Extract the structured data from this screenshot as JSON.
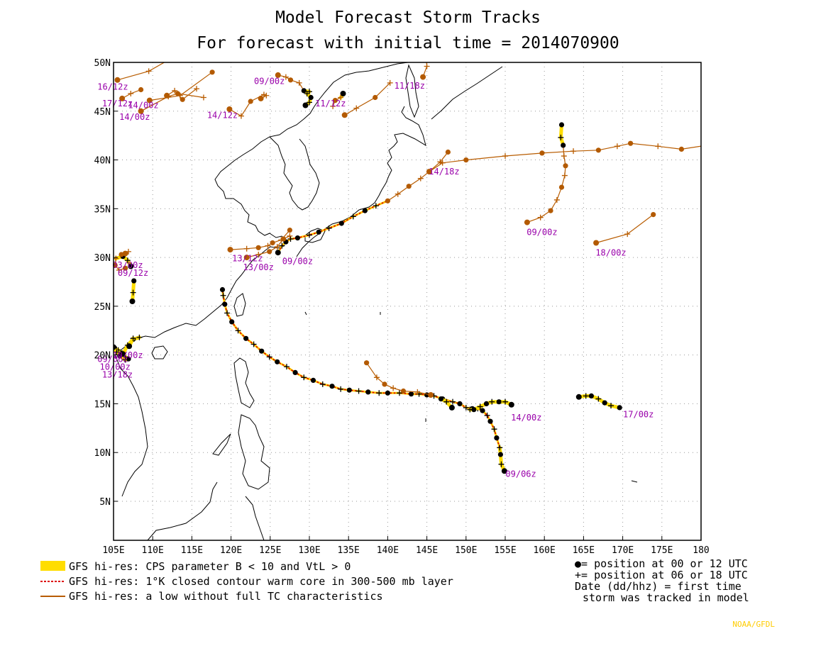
{
  "title_line1": "Model Forecast Storm Tracks",
  "title_line2": "For forecast with initial time = 2014070900",
  "lon_ticks": [
    "105E",
    "110E",
    "115E",
    "120E",
    "125E",
    "130E",
    "135E",
    "140E",
    "145E",
    "150E",
    "155E",
    "160E",
    "165E",
    "170E",
    "175E",
    "180"
  ],
  "lat_ticks": [
    "5N",
    "10N",
    "15N",
    "20N",
    "25N",
    "30N",
    "35N",
    "40N",
    "45N",
    "50N"
  ],
  "legend": {
    "yellow": "GFS hi-res: CPS parameter B < 10 and VtL > 0",
    "red": "GFS hi-res: 1°K closed contour warm core in 300-500 mb layer",
    "brown": "GFS hi-res: a low without full TC characteristics",
    "key1": "●= position at 00 or 12 UTC",
    "key2": "+= position at 06 or 18 UTC",
    "key3": "Date (dd/hhz)  = first time",
    "key4": "storm was tracked in model"
  },
  "credit": "NOAA/GFDL",
  "colors": {
    "yellow": "#ffdd00",
    "red": "#dd0000",
    "brown": "#b85c00",
    "label": "#9900aa",
    "dot_brown": "#b35a00"
  },
  "map_extent": {
    "lon": [
      105,
      180
    ],
    "lat": [
      1,
      50
    ]
  },
  "tracks": [
    {
      "label": "09/06z",
      "label_lon": 157,
      "label_lat": 7.5,
      "points": [
        [
          154.9,
          8.1
        ],
        [
          154.5,
          8.8
        ],
        [
          154.4,
          9.8
        ],
        [
          154.3,
          10.5
        ],
        [
          153.9,
          11.5
        ],
        [
          153.6,
          12.4
        ],
        [
          153.1,
          13.2
        ],
        [
          152.7,
          13.8
        ],
        [
          152.1,
          14.3
        ],
        [
          151.5,
          14.5
        ],
        [
          150.8,
          14.5
        ],
        [
          150,
          14.6
        ],
        [
          149.2,
          15
        ],
        [
          148.3,
          15.2
        ],
        [
          147,
          15.5
        ],
        [
          145.9,
          15.8
        ],
        [
          145,
          15.9
        ],
        [
          144,
          16
        ],
        [
          143,
          16
        ],
        [
          141.5,
          16.1
        ],
        [
          140,
          16.1
        ],
        [
          138.9,
          16.1
        ],
        [
          137.5,
          16.2
        ],
        [
          136.3,
          16.3
        ],
        [
          135.1,
          16.4
        ],
        [
          134,
          16.5
        ],
        [
          132.9,
          16.8
        ],
        [
          131.7,
          17
        ],
        [
          130.5,
          17.4
        ],
        [
          129.3,
          17.7
        ],
        [
          128.2,
          18.2
        ],
        [
          127.1,
          18.8
        ],
        [
          125.9,
          19.3
        ],
        [
          124.9,
          19.8
        ],
        [
          123.9,
          20.4
        ],
        [
          122.9,
          21.1
        ],
        [
          121.9,
          21.7
        ],
        [
          120.9,
          22.5
        ],
        [
          120.1,
          23.4
        ],
        [
          119.5,
          24.3
        ],
        [
          119.2,
          25.2
        ],
        [
          119,
          26.1
        ],
        [
          118.9,
          26.7
        ]
      ],
      "segments": [
        {
          "type": "yellow",
          "from": 0,
          "to": 3
        },
        {
          "type": "red",
          "from": 3,
          "to": 42
        }
      ]
    },
    {
      "label": "14/00z",
      "label_lon": 157.7,
      "label_lat": 13.3,
      "points": [
        [
          148.2,
          14.6
        ],
        [
          147.5,
          15.2
        ],
        [
          146.8,
          15.5
        ]
      ],
      "segments": [
        {
          "type": "yellow",
          "from": 0,
          "to": 2
        }
      ]
    },
    {
      "label": "",
      "label_lon": 0,
      "label_lat": 0,
      "points": [
        [
          155.8,
          14.9
        ],
        [
          155,
          15.2
        ],
        [
          154.2,
          15.2
        ],
        [
          153.3,
          15.2
        ],
        [
          152.6,
          15
        ],
        [
          151.8,
          14.7
        ],
        [
          151,
          14.4
        ],
        [
          150.5,
          14.4
        ]
      ],
      "segments": [
        {
          "type": "yellow",
          "from": 0,
          "to": 7
        }
      ]
    },
    {
      "label": "",
      "label_lon": 0,
      "label_lat": 0,
      "points": [
        [
          145.5,
          15.9
        ],
        [
          143.8,
          16.2
        ],
        [
          142,
          16.3
        ],
        [
          140.7,
          16.6
        ],
        [
          139.6,
          17
        ],
        [
          138.6,
          17.7
        ],
        [
          137.3,
          19.2
        ]
      ],
      "segments": [
        {
          "type": "brown",
          "from": 0,
          "to": 6
        }
      ]
    },
    {
      "label": "17/00z",
      "label_lon": 172,
      "label_lat": 13.6,
      "points": [
        [
          164.4,
          15.7
        ],
        [
          165.3,
          15.8
        ],
        [
          166,
          15.8
        ],
        [
          166.9,
          15.5
        ],
        [
          167.7,
          15.1
        ],
        [
          168.5,
          14.8
        ],
        [
          169.6,
          14.6
        ]
      ],
      "segments": [
        {
          "type": "yellow",
          "from": 0,
          "to": 6
        }
      ]
    },
    {
      "label": "09/00z",
      "label_lon": 128.5,
      "label_lat": 29.3,
      "points": [
        [
          126,
          30.5
        ],
        [
          126.5,
          31.2
        ],
        [
          127,
          31.6
        ],
        [
          127.6,
          31.9
        ],
        [
          128.5,
          32
        ],
        [
          130,
          32.3
        ],
        [
          131.2,
          32.6
        ],
        [
          132.5,
          33
        ],
        [
          134.1,
          33.5
        ],
        [
          135.6,
          34.2
        ],
        [
          137.1,
          34.8
        ],
        [
          138.5,
          35.3
        ],
        [
          140,
          35.8
        ],
        [
          141.3,
          36.5
        ],
        [
          142.7,
          37.3
        ],
        [
          144.2,
          38.1
        ],
        [
          145.3,
          38.8
        ],
        [
          146.7,
          39.8
        ],
        [
          147.7,
          40.8
        ]
      ],
      "segments": [
        {
          "type": "red",
          "from": 0,
          "to": 12
        },
        {
          "type": "brown",
          "from": 12,
          "to": 18
        }
      ]
    },
    {
      "label": "14/18z",
      "label_lon": 147.2,
      "label_lat": 38.5,
      "points": [
        [
          145.3,
          38.8
        ],
        [
          147,
          39.7
        ],
        [
          150,
          40
        ],
        [
          155,
          40.4
        ],
        [
          159.7,
          40.7
        ],
        [
          163.7,
          40.9
        ],
        [
          166.9,
          41
        ],
        [
          169.3,
          41.4
        ],
        [
          171,
          41.7
        ],
        [
          174.5,
          41.4
        ],
        [
          177.5,
          41.1
        ],
        [
          181.5,
          41.6
        ]
      ],
      "segments": [
        {
          "type": "brown",
          "from": 0,
          "to": 11
        }
      ]
    },
    {
      "label": "09/00z",
      "label_lon": 159.7,
      "label_lat": 32.3,
      "points": [
        [
          157.8,
          33.6
        ],
        [
          159.5,
          34.1
        ],
        [
          160.8,
          34.8
        ],
        [
          161.6,
          35.9
        ],
        [
          162.2,
          37.2
        ],
        [
          162.6,
          38.4
        ],
        [
          162.7,
          39.4
        ],
        [
          162.5,
          40.4
        ],
        [
          162.4,
          41.5
        ],
        [
          162.1,
          42.3
        ],
        [
          162.2,
          43.6
        ]
      ],
      "segments": [
        {
          "type": "brown",
          "from": 0,
          "to": 8
        },
        {
          "type": "yellow",
          "from": 8,
          "to": 10
        }
      ]
    },
    {
      "label": "18/00z",
      "label_lon": 168.5,
      "label_lat": 30.2,
      "points": [
        [
          166.6,
          31.5
        ],
        [
          170.6,
          32.4
        ],
        [
          173.9,
          34.4
        ]
      ],
      "segments": [
        {
          "type": "brown",
          "from": 0,
          "to": 2
        }
      ]
    },
    {
      "label": "13/12z",
      "label_lon": 122.1,
      "label_lat": 29.6,
      "points": [
        [
          119.9,
          30.8
        ],
        [
          122,
          30.9
        ],
        [
          123.5,
          31
        ],
        [
          124.7,
          31.2
        ],
        [
          125.3,
          31.5
        ],
        [
          126.4,
          31.8
        ],
        [
          127.5,
          32.8
        ]
      ],
      "segments": [
        {
          "type": "brown",
          "from": 0,
          "to": 6
        }
      ]
    },
    {
      "label": "13/00z",
      "label_lon": 123.5,
      "label_lat": 28.7,
      "points": [
        [
          122,
          30
        ],
        [
          123.5,
          30.3
        ],
        [
          124.9,
          30.6
        ],
        [
          125.9,
          31.1
        ],
        [
          126.7,
          31.9
        ],
        [
          127.5,
          32.2
        ]
      ],
      "segments": [
        {
          "type": "brown",
          "from": 0,
          "to": 5
        }
      ]
    },
    {
      "label": "09/12z",
      "label_lon": 107.5,
      "label_lat": 28.1,
      "points": [
        [
          107.4,
          25.5
        ],
        [
          107.5,
          26.4
        ],
        [
          107.6,
          27.6
        ]
      ],
      "segments": [
        {
          "type": "yellow",
          "from": 0,
          "to": 2
        }
      ]
    },
    {
      "label": "",
      "label_lon": 0,
      "label_lat": 0,
      "points": [
        [
          107.2,
          29.1
        ],
        [
          106.8,
          29.7
        ],
        [
          106.2,
          30.1
        ],
        [
          105.3,
          29.9
        ],
        [
          105.2,
          29.2
        ],
        [
          105.7,
          28.7
        ],
        [
          106.5,
          28.9
        ]
      ],
      "segments": [
        {
          "type": "yellow",
          "from": 0,
          "to": 3
        },
        {
          "type": "brown",
          "from": 3,
          "to": 6
        }
      ]
    },
    {
      "label": "03/00z",
      "label_lon": 106.8,
      "label_lat": 28.9,
      "points": [
        [
          106.5,
          30.4
        ],
        [
          106.9,
          30.6
        ],
        [
          106,
          30.3
        ]
      ],
      "segments": [
        {
          "type": "brown",
          "from": 0,
          "to": 2
        }
      ]
    },
    {
      "label": "09/06z",
      "label_lon": 104.9,
      "label_lat": 19.3,
      "points": [
        [
          105.1,
          20.7
        ],
        [
          105.6,
          20.5
        ],
        [
          106.1,
          20.2
        ],
        [
          106.5,
          19.8
        ],
        [
          106.9,
          19.6
        ]
      ],
      "segments": [
        {
          "type": "yellow",
          "from": 0,
          "to": 4
        }
      ]
    },
    {
      "label": "13/18z",
      "label_lon": 105.5,
      "label_lat": 17.7,
      "points": [
        [
          105,
          20.8
        ],
        [
          105.4,
          20.3
        ],
        [
          105.8,
          19.9
        ],
        [
          106.5,
          19.5
        ]
      ],
      "segments": [
        {
          "type": "yellow",
          "from": 0,
          "to": 3
        }
      ]
    },
    {
      "label": "10/00z",
      "label_lon": 105.2,
      "label_lat": 18.5,
      "points": [
        [
          106.2,
          20.1
        ],
        [
          106.8,
          21
        ],
        [
          107.5,
          21.6
        ],
        [
          108.3,
          21.8
        ]
      ],
      "segments": [
        {
          "type": "yellow",
          "from": 0,
          "to": 3
        }
      ]
    },
    {
      "label": "10/00z",
      "label_lon": 106.8,
      "label_lat": 19.7,
      "points": [
        [
          107,
          20.9
        ],
        [
          107.5,
          21.7
        ]
      ],
      "segments": [
        {
          "type": "yellow",
          "from": 0,
          "to": 1
        }
      ]
    },
    {
      "label": "16/12z",
      "label_lon": 104.9,
      "label_lat": 47.2,
      "points": [
        [
          105.5,
          48.2
        ],
        [
          109.5,
          49.1
        ],
        [
          113,
          50.7
        ]
      ],
      "segments": [
        {
          "type": "brown",
          "from": 0,
          "to": 2
        }
      ]
    },
    {
      "label": "17/12z",
      "label_lon": 105.5,
      "label_lat": 45.5,
      "points": [
        [
          106.1,
          46.3
        ],
        [
          107.2,
          46.8
        ],
        [
          108.5,
          47.2
        ]
      ],
      "segments": [
        {
          "type": "brown",
          "from": 0,
          "to": 2
        }
      ]
    },
    {
      "label": "14/00z",
      "label_lon": 108.8,
      "label_lat": 45.3,
      "points": [
        [
          109.6,
          46.1
        ],
        [
          113.5,
          46.6
        ],
        [
          117.6,
          49
        ]
      ],
      "segments": [
        {
          "type": "brown",
          "from": 0,
          "to": 2
        }
      ]
    },
    {
      "label": "14/00z",
      "label_lon": 107.7,
      "label_lat": 44.1,
      "points": [
        [
          108.5,
          45
        ],
        [
          112,
          46.5
        ],
        [
          113.2,
          46.8
        ],
        [
          116.5,
          46.4
        ]
      ],
      "segments": [
        {
          "type": "brown",
          "from": 0,
          "to": 3
        }
      ]
    },
    {
      "label": "",
      "label_lon": 0,
      "label_lat": 0,
      "points": [
        [
          111.8,
          46.6
        ],
        [
          112.8,
          47.1
        ],
        [
          113.8,
          46.2
        ],
        [
          115.6,
          47.3
        ]
      ],
      "segments": [
        {
          "type": "brown",
          "from": 0,
          "to": 3
        }
      ]
    },
    {
      "label": "14/12z",
      "label_lon": 118.9,
      "label_lat": 44.3,
      "points": [
        [
          119.8,
          45.2
        ],
        [
          121.3,
          44.5
        ],
        [
          122.5,
          46
        ],
        [
          124.2,
          46.7
        ]
      ],
      "segments": [
        {
          "type": "brown",
          "from": 0,
          "to": 3
        }
      ]
    },
    {
      "label": "",
      "label_lon": 0,
      "label_lat": 0,
      "points": [
        [
          123.8,
          46.3
        ],
        [
          124.5,
          46.6
        ]
      ],
      "segments": [
        {
          "type": "brown",
          "from": 0,
          "to": 1
        }
      ]
    },
    {
      "label": "09/00z",
      "label_lon": 124.9,
      "label_lat": 47.8,
      "points": [
        [
          126,
          48.7
        ],
        [
          127,
          48.5
        ],
        [
          127.6,
          48.2
        ],
        [
          128.7,
          47.9
        ],
        [
          129.3,
          47.1
        ],
        [
          130,
          47
        ]
      ],
      "segments": [
        {
          "type": "brown",
          "from": 0,
          "to": 4
        },
        {
          "type": "yellow",
          "from": 4,
          "to": 5
        }
      ]
    },
    {
      "label": "",
      "label_lon": 0,
      "label_lat": 0,
      "points": [
        [
          129.5,
          45.6
        ],
        [
          130,
          45.9
        ],
        [
          130.2,
          46.4
        ],
        [
          129.7,
          46.8
        ]
      ],
      "segments": [
        {
          "type": "yellow",
          "from": 0,
          "to": 3
        }
      ]
    },
    {
      "label": "11/12z",
      "label_lon": 132.7,
      "label_lat": 45.5,
      "points": [
        [
          134.3,
          46.8
        ],
        [
          134,
          46.4
        ],
        [
          133.3,
          46.1
        ],
        [
          133,
          45.5
        ]
      ],
      "segments": [
        {
          "type": "yellow",
          "from": 0,
          "to": 1
        },
        {
          "type": "brown",
          "from": 1,
          "to": 3
        }
      ]
    },
    {
      "label": "",
      "label_lon": 0,
      "label_lat": 0,
      "points": [
        [
          134.5,
          44.6
        ],
        [
          136,
          45.3
        ],
        [
          138.4,
          46.4
        ],
        [
          140.3,
          47.9
        ]
      ],
      "segments": [
        {
          "type": "brown",
          "from": 0,
          "to": 3
        }
      ]
    },
    {
      "label": "11/18z",
      "label_lon": 142.8,
      "label_lat": 47.3,
      "points": [
        [
          144.5,
          48.5
        ],
        [
          145,
          49.6
        ],
        [
          144.7,
          52.5
        ]
      ],
      "segments": [
        {
          "type": "brown",
          "from": 0,
          "to": 2
        }
      ]
    }
  ]
}
